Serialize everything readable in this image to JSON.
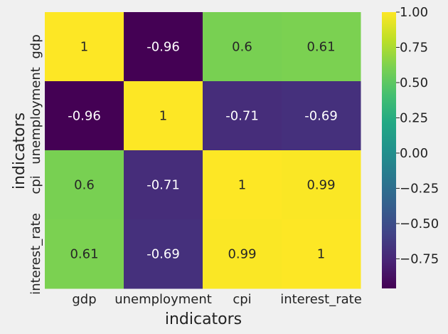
{
  "chart_data": {
    "type": "heatmap",
    "title": "",
    "xlabel": "indicators",
    "ylabel": "indicators",
    "x_categories": [
      "gdp",
      "unemployment",
      "cpi",
      "interest_rate"
    ],
    "y_categories": [
      "gdp",
      "unemployment",
      "cpi",
      "interest_rate"
    ],
    "values": [
      [
        1,
        -0.96,
        0.6,
        0.61
      ],
      [
        -0.96,
        1,
        -0.71,
        -0.69
      ],
      [
        0.6,
        -0.71,
        1,
        0.99
      ],
      [
        0.61,
        -0.69,
        0.99,
        1
      ]
    ],
    "annotations": [
      [
        "1",
        "-0.96",
        "0.6",
        "0.61"
      ],
      [
        "-0.96",
        "1",
        "-0.71",
        "-0.69"
      ],
      [
        "0.6",
        "-0.71",
        "1",
        "0.99"
      ],
      [
        "0.61",
        "-0.69",
        "0.99",
        "1"
      ]
    ],
    "colormap": "viridis",
    "value_range": [
      -0.96,
      1
    ],
    "colorbar_ticks": [
      1.0,
      0.75,
      0.5,
      0.25,
      0.0,
      -0.25,
      -0.5,
      -0.75
    ],
    "colorbar_tick_labels": [
      "1.00",
      "0.75",
      "0.50",
      "0.25",
      "0.00",
      "−0.25",
      "−0.50",
      "−0.75"
    ],
    "colorbar": true,
    "grid": false
  },
  "colors": {
    "background": "#f0f0f0",
    "text": "#222222",
    "annotation_dark_bg": "#ffffff",
    "annotation_light_bg": "#262626"
  }
}
